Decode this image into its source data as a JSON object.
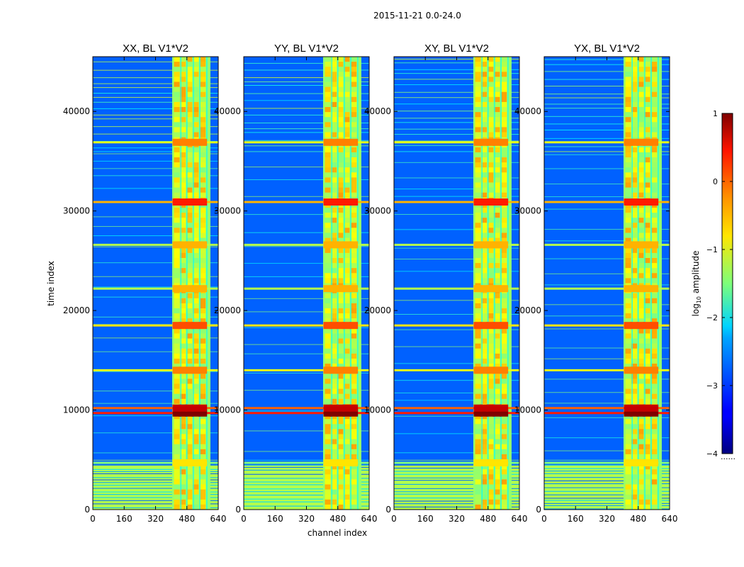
{
  "chart_data": {
    "type": "heatmap",
    "suptitle": "2015-11-21 0.0-24.0",
    "xlabel": "channel index",
    "ylabel": "time index",
    "xlim": [
      0,
      640
    ],
    "ylim": [
      0,
      45500
    ],
    "xticks": [
      0,
      160,
      320,
      480,
      640
    ],
    "yticks": [
      0,
      10000,
      20000,
      30000,
      40000
    ],
    "xtick_labels": [
      "0",
      "160",
      "320",
      "480",
      "640"
    ],
    "ytick_labels": [
      "0",
      "10000",
      "20000",
      "30000",
      "40000"
    ],
    "colormap": "jet",
    "colorbar": {
      "label": "log10 amplitude",
      "label_main": "log",
      "label_sub": "10",
      "label_rest": " amplitude",
      "range": [
        -4,
        1
      ],
      "ticks": [
        1,
        0,
        -1,
        -2,
        -3,
        -4
      ],
      "tick_labels": [
        "1",
        "0",
        "−1",
        "−2",
        "−3",
        "−4"
      ],
      "dots": "......"
    },
    "panels": [
      {
        "title": "XX, BL V1*V2",
        "band_channels": [
          405,
          600
        ]
      },
      {
        "title": "YY, BL V1*V2",
        "band_channels": [
          405,
          600
        ]
      },
      {
        "title": "XY, BL V1*V2",
        "band_channels": [
          405,
          600
        ]
      },
      {
        "title": "YX, BL V1*V2",
        "band_channels": [
          405,
          600
        ]
      }
    ],
    "strong_rows": [
      {
        "time": 4700,
        "level": 0.5
      },
      {
        "time": 9700,
        "level": 0.85
      },
      {
        "time": 10200,
        "level": 0.78
      },
      {
        "time": 14000,
        "level": 0.6
      },
      {
        "time": 18500,
        "level": 0.65
      },
      {
        "time": 22200,
        "level": 0.55
      },
      {
        "time": 26600,
        "level": 0.55
      },
      {
        "time": 30900,
        "level": 0.7
      },
      {
        "time": 36900,
        "level": 0.6
      }
    ],
    "low_band": {
      "from": 0,
      "to": 4500,
      "level": 0.55
    }
  }
}
